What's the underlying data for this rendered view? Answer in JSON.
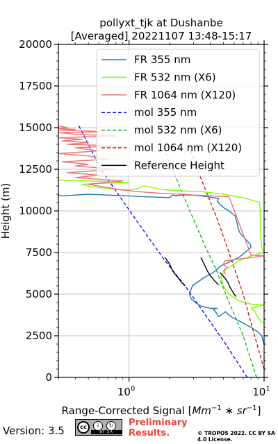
{
  "chart_data": {
    "type": "line",
    "title": "pollyxt_tjk at Dushanbe",
    "subtitle": "[Averaged] 20221107 13:48-15:17",
    "xlabel": "Range-Corrected Signal [Mm^-1 * sr^-1]",
    "xlabel_parts": {
      "prefix": "Range-Corrected Signal [",
      "unit1": "Mm",
      "exp1": "−1",
      "mid": " ∗ ",
      "unit2": "sr",
      "exp2": "−1",
      "suffix": "]"
    },
    "ylabel": "Height (m)",
    "xscale": "log",
    "xlim": [
      0.3,
      10
    ],
    "ylim": [
      0,
      20000
    ],
    "grid": true,
    "legend_position": "top-right",
    "y_ticks": [
      0,
      2500,
      5000,
      7500,
      10000,
      12500,
      15000,
      17500,
      20000
    ],
    "y_tick_labels": [
      "0",
      "2500",
      "5000",
      "7500",
      "10000",
      "12500",
      "15000",
      "17500",
      "20000"
    ],
    "x_ticks": [
      1,
      10
    ],
    "x_tick_labels": [
      {
        "base": "10",
        "exp": "0"
      },
      {
        "base": "10",
        "exp": "1"
      }
    ],
    "series": [
      {
        "name": "FR 355 nm",
        "color": "#1f77b4",
        "style": "solid",
        "x": [
          10,
          9.8,
          9.6,
          8.8,
          8.0,
          7.2,
          6.5,
          5.8,
          5.4,
          5.2,
          4.9,
          4.6,
          4.4,
          4.3,
          4.2,
          4.5,
          4.0,
          3.8,
          3.5,
          3.3,
          3.1,
          2.9,
          2.8,
          2.95,
          3.6,
          4.2,
          4.8,
          6.5,
          7.2,
          8.0,
          7.9,
          7.1,
          6.6,
          6.4,
          6.3,
          6.1,
          5.5,
          5.0,
          4.7,
          4.5,
          4.6,
          4.2,
          3.8,
          3.4,
          2.9,
          2.5,
          2.2,
          2.1,
          2.0,
          1.3,
          1.0,
          0.7,
          0.5,
          0.4,
          0.32,
          0.3
        ],
        "y": [
          2000,
          2200,
          2500,
          2800,
          3000,
          3200,
          3400,
          3600,
          3800,
          3950,
          3800,
          3650,
          3900,
          4000,
          4100,
          4150,
          4150,
          4200,
          4250,
          4350,
          4500,
          4700,
          5000,
          5500,
          6000,
          6300,
          6700,
          7200,
          7500,
          7800,
          8000,
          8400,
          8700,
          9000,
          9300,
          9700,
          10000,
          10200,
          10400,
          10600,
          10750,
          10800,
          10850,
          10900,
          10950,
          10950,
          10920,
          10950,
          10800,
          10850,
          10900,
          10950,
          11000,
          10950,
          10900,
          10950
        ]
      },
      {
        "name": "FR 532 nm (X6)",
        "color": "#7fff00",
        "style": "solid",
        "x": [
          10,
          9.6,
          9.0,
          8.5,
          8.0,
          8.6,
          9.5,
          10,
          8.0,
          6.5,
          5.5,
          5.0,
          4.8,
          5.2,
          6.5,
          8.0,
          10,
          9.7,
          9.4,
          9.3,
          7.0,
          5.0,
          3.5,
          2.5,
          2.0,
          1.7,
          1.5,
          1.4,
          1.3,
          1.2,
          1.1,
          1.0,
          0.8,
          0.7,
          0.6,
          0.55,
          0.5,
          0.45,
          0.6,
          1.0,
          0.8,
          0.5,
          0.3
        ],
        "y": [
          3300,
          3300,
          3600,
          4000,
          4150,
          4200,
          4300,
          4350,
          4400,
          4600,
          5000,
          5500,
          6000,
          6500,
          7000,
          7300,
          7500,
          7700,
          8500,
          10500,
          10800,
          11000,
          11150,
          11200,
          11250,
          11300,
          11400,
          11450,
          11500,
          11400,
          11300,
          11250,
          11300,
          11350,
          11400,
          11450,
          11500,
          11600,
          11650,
          11700,
          11750,
          11800,
          11850
        ]
      },
      {
        "name": "FR 1064 nm (X120)",
        "color": "#f07070",
        "style": "solid",
        "x": [
          5.2,
          5.0,
          5.3,
          5.0,
          5.1,
          10,
          8.0,
          5.5,
          4.3,
          3.0,
          2.5,
          1.8,
          1.2,
          0.9,
          0.7,
          0.5,
          0.9,
          0.4,
          0.6,
          0.35,
          0.8,
          0.4,
          0.5,
          0.32,
          0.7,
          0.5,
          0.3,
          0.6,
          0.4,
          0.9,
          0.35,
          0.5,
          0.32,
          0.45,
          0.3,
          0.8,
          0.4,
          0.3,
          0.6,
          0.5,
          0.3,
          0.4,
          0.3,
          0.35,
          0.3
        ],
        "y": [
          6200,
          6400,
          6600,
          6800,
          7000,
          7300,
          7350,
          10850,
          10900,
          10950,
          11000,
          11050,
          11150,
          11250,
          11400,
          11600,
          11800,
          12000,
          12150,
          12300,
          12500,
          12700,
          12800,
          12950,
          13100,
          13300,
          13450,
          13600,
          13800,
          13900,
          14000,
          14100,
          14200,
          14300,
          14400,
          14500,
          14600,
          14700,
          14750,
          14800,
          14850,
          14900,
          14950,
          15000,
          15100
        ]
      },
      {
        "name": "mol 355 nm",
        "color": "#0000ff",
        "style": "dashed",
        "x": [
          7.5,
          5.2,
          3.5,
          2.6,
          1.85,
          1.3,
          0.9,
          0.62,
          0.42
        ],
        "y": [
          0,
          2000,
          4000,
          5500,
          7000,
          8750,
          10600,
          12500,
          15200
        ]
      },
      {
        "name": "mol 532 nm (X6)",
        "color": "#00b800",
        "style": "dashed",
        "x": [
          8.8,
          7.0,
          5.2,
          4.4,
          3.6,
          3.0,
          2.5,
          2.1,
          1.7
        ],
        "y": [
          0,
          2500,
          5000,
          6500,
          8000,
          9500,
          11000,
          12500,
          14200
        ]
      },
      {
        "name": "mol 1064 nm (X120)",
        "color": "#dd0000",
        "style": "dashed",
        "x": [
          10,
          8.5,
          7.0,
          5.5,
          4.5,
          3.8,
          3.2,
          2.9,
          2.7
        ],
        "y": [
          500,
          2500,
          5000,
          7500,
          9500,
          11000,
          12500,
          13500,
          14200
        ]
      },
      {
        "name": "Reference Height",
        "color": "#000000",
        "style": "solid",
        "segments": [
          {
            "x": [
              1.85,
              2.0,
              2.1,
              2.3,
              2.45,
              2.6
            ],
            "y": [
              7200,
              6800,
              6400,
              6000,
              5700,
              5500
            ]
          },
          {
            "x": [
              3.4,
              3.6,
              3.8,
              4.0,
              4.3,
              4.6
            ],
            "y": [
              7200,
              6800,
              6400,
              6100,
              5800,
              5550
            ]
          },
          {
            "x": [
              4.7,
              5.1,
              5.4,
              5.6,
              5.8,
              6.0,
              6.2
            ],
            "y": [
              6300,
              6000,
              5700,
              5400,
              5200,
              5000,
              4850
            ]
          }
        ]
      }
    ]
  },
  "footer": {
    "version": "Version: 3.5",
    "license_badge": {
      "cc": "cc",
      "bar": "BY SA"
    },
    "preliminary": "Preliminary Results.",
    "copyright": "© TROPOS 2022. CC BY SA 4.0 License."
  }
}
